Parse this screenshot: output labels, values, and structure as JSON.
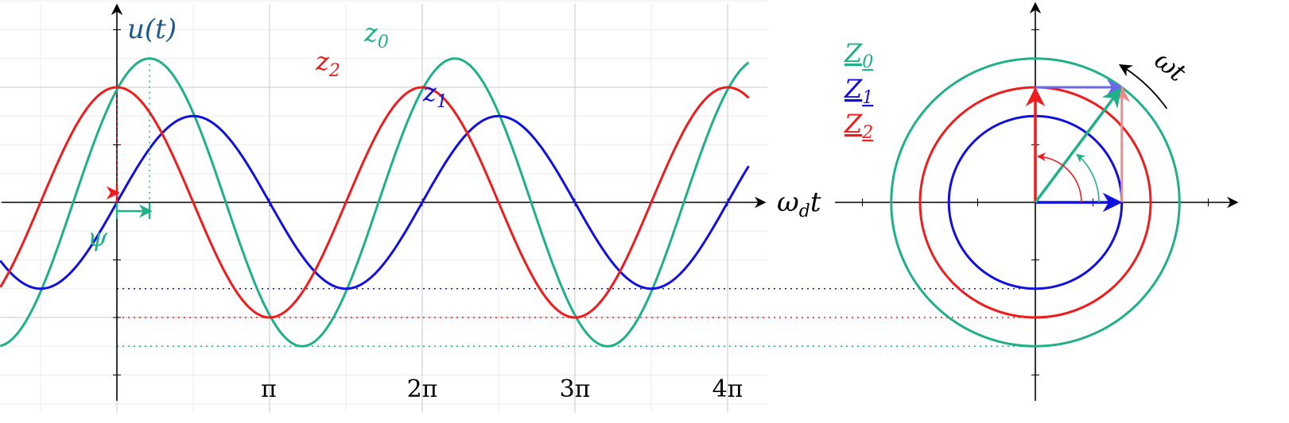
{
  "diagram": {
    "y_axis_label": "u(t)",
    "x_axis_label": "ω",
    "x_axis_label_sub": "d",
    "x_axis_label_tail": "t",
    "psi_label": "ψ",
    "omega_t_label": "ωt",
    "tick_labels": [
      "π",
      "2π",
      "3π",
      "4π"
    ],
    "colors": {
      "z0": "#1fb08a",
      "z1": "#1010e0",
      "z2": "#ee1c1c",
      "axis": "#000000",
      "grid": "#cccccc",
      "title": "#1f5a8c"
    }
  },
  "chart_data": {
    "type": "line",
    "x_unit": "radians",
    "x_range": [
      -2.4,
      13.0
    ],
    "y_range": [
      -3.2,
      3.4
    ],
    "series": [
      {
        "name": "z_0",
        "amplitude": 2.5,
        "phase": 0.9,
        "phasor_label": "Z",
        "phasor_sub": "0"
      },
      {
        "name": "z_1",
        "amplitude": 1.5,
        "phase": 0.0,
        "phasor_label": "Z",
        "phasor_sub": "1"
      },
      {
        "name": "z_2",
        "amplitude": 2.0,
        "phase": 1.5708,
        "phasor_label": "Z",
        "phasor_sub": "2"
      }
    ]
  }
}
